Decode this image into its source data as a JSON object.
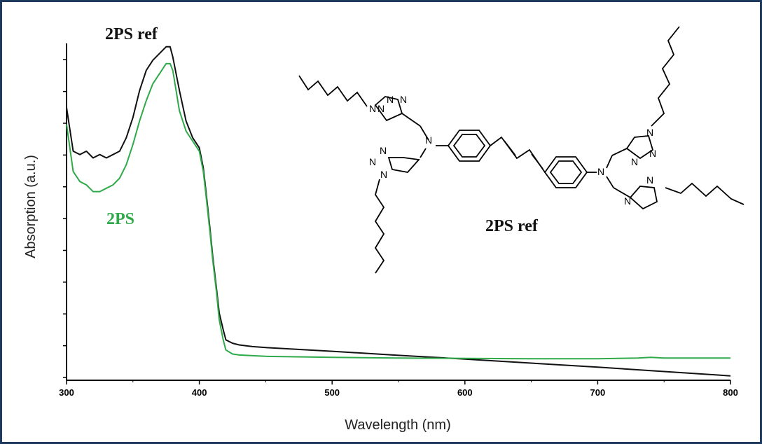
{
  "chart_data": {
    "type": "line",
    "xlabel": "Wavelength (nm)",
    "ylabel": "Absorption (a.u.)",
    "xlim": [
      300,
      800
    ],
    "ylim": [
      0,
      1
    ],
    "x_ticks": [
      "300",
      "400",
      "500",
      "600",
      "700",
      "800"
    ],
    "grid": false,
    "series": [
      {
        "name": "2PS ref",
        "color": "#111111",
        "x": [
          300,
          305,
          310,
          315,
          320,
          325,
          330,
          335,
          340,
          345,
          350,
          355,
          360,
          365,
          370,
          375,
          378,
          380,
          385,
          390,
          395,
          400,
          403,
          405,
          408,
          410,
          413,
          415,
          418,
          420,
          425,
          430,
          440,
          450,
          500,
          550,
          600,
          650,
          700,
          750,
          800
        ],
        "y": [
          0.81,
          0.68,
          0.67,
          0.68,
          0.66,
          0.67,
          0.66,
          0.67,
          0.68,
          0.72,
          0.78,
          0.86,
          0.92,
          0.95,
          0.97,
          0.99,
          0.99,
          0.96,
          0.86,
          0.77,
          0.72,
          0.69,
          0.63,
          0.56,
          0.45,
          0.37,
          0.27,
          0.2,
          0.15,
          0.12,
          0.11,
          0.105,
          0.1,
          0.097,
          0.086,
          0.074,
          0.063,
          0.051,
          0.039,
          0.026,
          0.013
        ]
      },
      {
        "name": "2PS",
        "color": "#2eaa4a",
        "x": [
          300,
          305,
          310,
          315,
          320,
          325,
          330,
          335,
          340,
          345,
          350,
          355,
          360,
          365,
          370,
          375,
          378,
          380,
          385,
          390,
          395,
          400,
          403,
          405,
          408,
          410,
          413,
          415,
          418,
          420,
          425,
          430,
          440,
          450,
          500,
          550,
          600,
          650,
          700,
          730,
          740,
          745,
          750,
          800
        ],
        "y": [
          0.76,
          0.62,
          0.59,
          0.58,
          0.56,
          0.56,
          0.57,
          0.58,
          0.6,
          0.64,
          0.7,
          0.77,
          0.83,
          0.88,
          0.91,
          0.94,
          0.94,
          0.92,
          0.8,
          0.74,
          0.71,
          0.68,
          0.62,
          0.55,
          0.44,
          0.36,
          0.26,
          0.18,
          0.12,
          0.09,
          0.078,
          0.075,
          0.073,
          0.071,
          0.068,
          0.066,
          0.065,
          0.064,
          0.064,
          0.066,
          0.068,
          0.067,
          0.066,
          0.066
        ]
      }
    ],
    "annotations": {
      "top_label": "2PS ref",
      "green_label": "2PS",
      "structure_label": "2PS ref"
    },
    "structure_atoms": [
      "N",
      "N",
      "N",
      "N",
      "N",
      "N",
      "N",
      "N",
      "N",
      "N",
      "N",
      "N",
      "N",
      "N"
    ]
  }
}
